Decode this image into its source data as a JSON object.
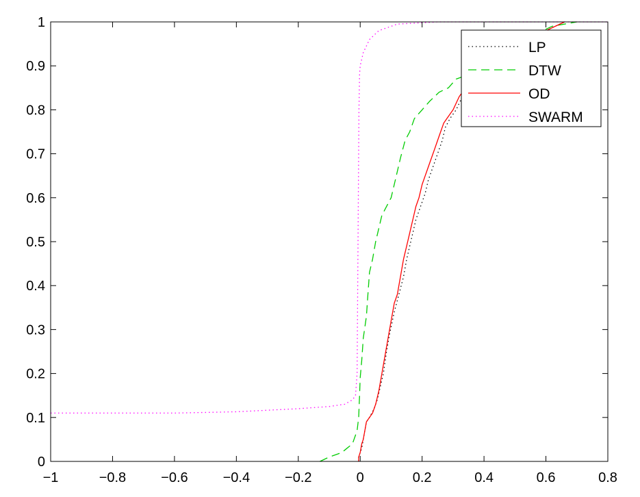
{
  "chart_data": {
    "type": "line",
    "title": "",
    "xlabel": "",
    "ylabel": "",
    "xlim": [
      -1,
      0.8
    ],
    "ylim": [
      0,
      1
    ],
    "xticks": [
      "−1",
      "−0.8",
      "−0.6",
      "−0.4",
      "−0.2",
      "0",
      "0.2",
      "0.4",
      "0.6",
      "0.8"
    ],
    "xtick_values": [
      -1,
      -0.8,
      -0.6,
      -0.4,
      -0.2,
      0,
      0.2,
      0.4,
      0.6,
      0.8
    ],
    "yticks": [
      "0",
      "0.1",
      "0.2",
      "0.3",
      "0.4",
      "0.5",
      "0.6",
      "0.7",
      "0.8",
      "0.9",
      "1"
    ],
    "ytick_values": [
      0,
      0.1,
      0.2,
      0.3,
      0.4,
      0.5,
      0.6,
      0.7,
      0.8,
      0.9,
      1
    ],
    "grid": false,
    "legend_position": "top-right",
    "series": [
      {
        "name": "LP",
        "color": "#000000",
        "style": "dotted",
        "points": [
          [
            -0.005,
            0
          ],
          [
            -0.005,
            0.01
          ],
          [
            0.0,
            0.02
          ],
          [
            0.005,
            0.03
          ],
          [
            0.01,
            0.05
          ],
          [
            0.015,
            0.07
          ],
          [
            0.02,
            0.09
          ],
          [
            0.03,
            0.1
          ],
          [
            0.045,
            0.12
          ],
          [
            0.055,
            0.14
          ],
          [
            0.065,
            0.17
          ],
          [
            0.075,
            0.2
          ],
          [
            0.085,
            0.25
          ],
          [
            0.095,
            0.29
          ],
          [
            0.11,
            0.34
          ],
          [
            0.125,
            0.38
          ],
          [
            0.14,
            0.42
          ],
          [
            0.15,
            0.46
          ],
          [
            0.16,
            0.49
          ],
          [
            0.17,
            0.52
          ],
          [
            0.18,
            0.55
          ],
          [
            0.195,
            0.58
          ],
          [
            0.21,
            0.61
          ],
          [
            0.22,
            0.64
          ],
          [
            0.235,
            0.67
          ],
          [
            0.25,
            0.7
          ],
          [
            0.265,
            0.73
          ],
          [
            0.275,
            0.76
          ],
          [
            0.29,
            0.78
          ],
          [
            0.31,
            0.8
          ],
          [
            0.33,
            0.83
          ],
          [
            0.36,
            0.86
          ],
          [
            0.4,
            0.89
          ],
          [
            0.45,
            0.92
          ],
          [
            0.5,
            0.94
          ],
          [
            0.55,
            0.96
          ],
          [
            0.6,
            0.98
          ],
          [
            0.66,
            1.0
          ]
        ]
      },
      {
        "name": "DTW",
        "color": "#00cc00",
        "style": "dashed",
        "points": [
          [
            -0.13,
            0
          ],
          [
            -0.1,
            0.01
          ],
          [
            -0.06,
            0.02
          ],
          [
            -0.025,
            0.04
          ],
          [
            -0.01,
            0.07
          ],
          [
            -0.005,
            0.1
          ],
          [
            -0.002,
            0.15
          ],
          [
            0.0,
            0.19
          ],
          [
            0.005,
            0.23
          ],
          [
            0.01,
            0.28
          ],
          [
            0.02,
            0.33
          ],
          [
            0.025,
            0.38
          ],
          [
            0.03,
            0.43
          ],
          [
            0.04,
            0.46
          ],
          [
            0.05,
            0.5
          ],
          [
            0.06,
            0.53
          ],
          [
            0.07,
            0.56
          ],
          [
            0.085,
            0.58
          ],
          [
            0.1,
            0.6
          ],
          [
            0.11,
            0.63
          ],
          [
            0.12,
            0.66
          ],
          [
            0.13,
            0.69
          ],
          [
            0.145,
            0.73
          ],
          [
            0.16,
            0.75
          ],
          [
            0.175,
            0.78
          ],
          [
            0.2,
            0.8
          ],
          [
            0.225,
            0.82
          ],
          [
            0.255,
            0.84
          ],
          [
            0.285,
            0.85
          ],
          [
            0.31,
            0.87
          ],
          [
            0.35,
            0.88
          ],
          [
            0.4,
            0.89
          ],
          [
            0.45,
            0.92
          ],
          [
            0.5,
            0.95
          ],
          [
            0.56,
            0.97
          ],
          [
            0.62,
            0.99
          ],
          [
            0.7,
            1.0
          ]
        ]
      },
      {
        "name": "OD",
        "color": "#ff0000",
        "style": "solid",
        "points": [
          [
            -0.005,
            0
          ],
          [
            -0.005,
            0.01
          ],
          [
            0.0,
            0.02
          ],
          [
            0.005,
            0.04
          ],
          [
            0.01,
            0.05
          ],
          [
            0.015,
            0.07
          ],
          [
            0.02,
            0.09
          ],
          [
            0.03,
            0.1
          ],
          [
            0.04,
            0.11
          ],
          [
            0.05,
            0.13
          ],
          [
            0.06,
            0.16
          ],
          [
            0.07,
            0.2
          ],
          [
            0.08,
            0.24
          ],
          [
            0.09,
            0.28
          ],
          [
            0.1,
            0.32
          ],
          [
            0.11,
            0.36
          ],
          [
            0.12,
            0.38
          ],
          [
            0.13,
            0.42
          ],
          [
            0.14,
            0.46
          ],
          [
            0.15,
            0.49
          ],
          [
            0.16,
            0.52
          ],
          [
            0.17,
            0.55
          ],
          [
            0.18,
            0.58
          ],
          [
            0.19,
            0.6
          ],
          [
            0.2,
            0.63
          ],
          [
            0.21,
            0.65
          ],
          [
            0.225,
            0.68
          ],
          [
            0.24,
            0.71
          ],
          [
            0.255,
            0.74
          ],
          [
            0.27,
            0.77
          ],
          [
            0.28,
            0.78
          ],
          [
            0.3,
            0.8
          ],
          [
            0.32,
            0.83
          ],
          [
            0.35,
            0.86
          ],
          [
            0.4,
            0.89
          ],
          [
            0.45,
            0.92
          ],
          [
            0.5,
            0.94
          ],
          [
            0.55,
            0.96
          ],
          [
            0.6,
            0.98
          ],
          [
            0.66,
            1.0
          ]
        ]
      },
      {
        "name": "SWARM",
        "color": "#ff00ff",
        "style": "dotted",
        "points": [
          [
            -1.0,
            0.11
          ],
          [
            -0.8,
            0.11
          ],
          [
            -0.6,
            0.11
          ],
          [
            -0.4,
            0.113
          ],
          [
            -0.2,
            0.12
          ],
          [
            -0.1,
            0.125
          ],
          [
            -0.05,
            0.13
          ],
          [
            -0.025,
            0.14
          ],
          [
            -0.015,
            0.15
          ],
          [
            -0.01,
            0.2
          ],
          [
            -0.008,
            0.4
          ],
          [
            -0.006,
            0.6
          ],
          [
            -0.004,
            0.8
          ],
          [
            -0.002,
            0.88
          ],
          [
            0.0,
            0.9
          ],
          [
            0.01,
            0.93
          ],
          [
            0.03,
            0.96
          ],
          [
            0.06,
            0.98
          ],
          [
            0.12,
            0.995
          ],
          [
            0.25,
            1.0
          ],
          [
            0.8,
            1.0
          ]
        ]
      }
    ]
  }
}
